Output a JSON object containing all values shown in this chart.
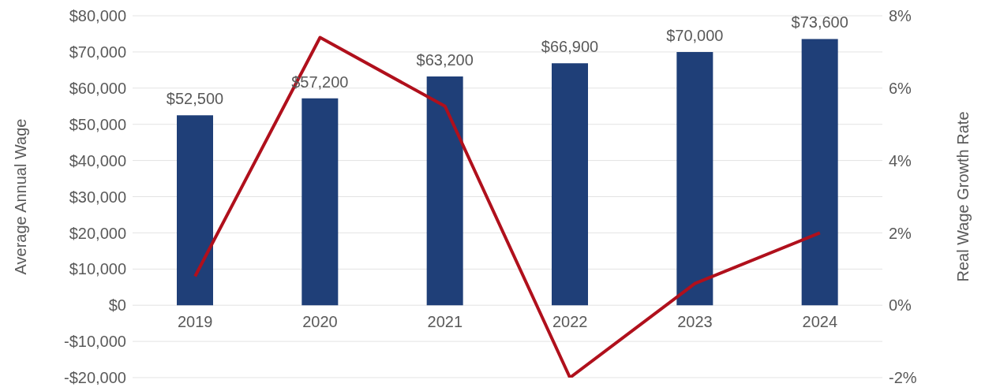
{
  "chart_data": {
    "type": "bar",
    "ylabel": "Average Annual Wage",
    "y2label": "Real Wage Growth Rate",
    "categories": [
      "2019",
      "2020",
      "2021",
      "2022",
      "2023",
      "2024"
    ],
    "series": [
      {
        "color": "#1f3f78",
        "values": [
          52500,
          57200,
          63200,
          66900,
          70000,
          73600
        ],
        "value_labels": [
          "$52,500",
          "$57,200",
          "$63,200",
          "$66,900",
          "$70,000",
          "$73,600"
        ]
      },
      {
        "type": "line",
        "axis": "y2",
        "color": "#b0101c",
        "values": [
          0.8,
          7.4,
          5.5,
          -2.0,
          0.6,
          2.0
        ],
        "marker": "none",
        "line_style": "solid"
      }
    ],
    "ylim": [
      -20000,
      80000
    ],
    "yticks": [
      {
        "value": -20000,
        "label": "-$20,000"
      },
      {
        "value": -10000,
        "label": "-$10,000"
      },
      {
        "value": 0,
        "label": "$0"
      },
      {
        "value": 10000,
        "label": "$10,000"
      },
      {
        "value": 20000,
        "label": "$20,000"
      },
      {
        "value": 30000,
        "label": "$30,000"
      },
      {
        "value": 40000,
        "label": "$40,000"
      },
      {
        "value": 50000,
        "label": "$50,000"
      },
      {
        "value": 60000,
        "label": "$60,000"
      },
      {
        "value": 70000,
        "label": "$70,000"
      },
      {
        "value": 80000,
        "label": "$80,000"
      }
    ],
    "y2lim": [
      -2,
      8
    ],
    "y2ticks": [
      {
        "value": -2,
        "label": "-2%"
      },
      {
        "value": 0,
        "label": "0%"
      },
      {
        "value": 2,
        "label": "2%"
      },
      {
        "value": 4,
        "label": "4%"
      },
      {
        "value": 6,
        "label": "6%"
      },
      {
        "value": 8,
        "label": "8%"
      }
    ],
    "grid": "y"
  }
}
